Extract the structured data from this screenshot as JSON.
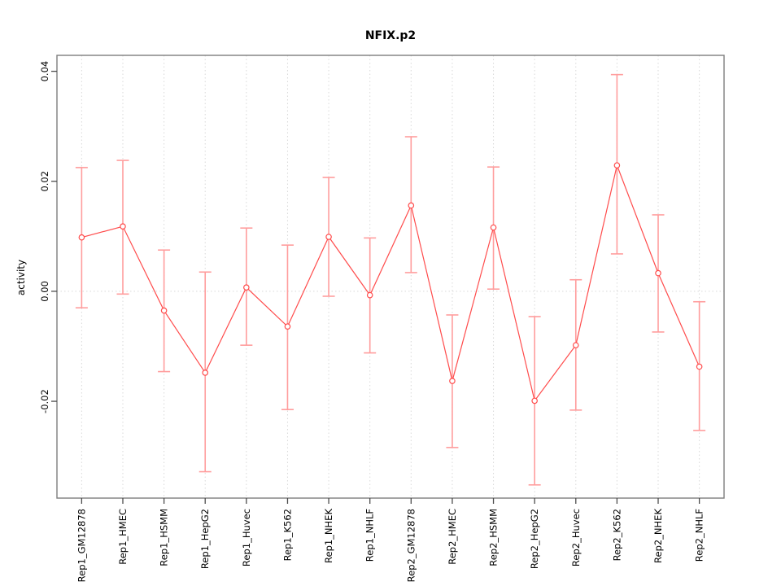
{
  "chart_data": {
    "type": "line",
    "title": "NFIX.p2",
    "xlabel": "",
    "ylabel": "activity",
    "categories": [
      "Rep1_GM12878",
      "Rep1_HMEC",
      "Rep1_HSMM",
      "Rep1_HepG2",
      "Rep1_Huvec",
      "Rep1_K562",
      "Rep1_NHEK",
      "Rep1_NHLF",
      "Rep2_GM12878",
      "Rep2_HMEC",
      "Rep2_HSMM",
      "Rep2_HepG2",
      "Rep2_Huvec",
      "Rep2_K562",
      "Rep2_NHEK",
      "Rep2_NHLF"
    ],
    "values": [
      0.0098,
      0.0118,
      -0.0035,
      -0.0148,
      0.0007,
      -0.0064,
      0.0099,
      -0.0007,
      0.0156,
      -0.0163,
      0.0116,
      -0.0199,
      -0.0098,
      0.0229,
      0.0033,
      -0.0137
    ],
    "error_lower": [
      -0.003,
      -0.0005,
      -0.0146,
      -0.0328,
      -0.0098,
      -0.0215,
      -0.0009,
      -0.0112,
      0.0034,
      -0.0284,
      0.0004,
      -0.0352,
      -0.0216,
      0.0068,
      -0.0074,
      -0.0253
    ],
    "error_upper": [
      0.0225,
      0.0238,
      0.0075,
      0.0035,
      0.0115,
      0.0084,
      0.0207,
      0.0097,
      0.0281,
      -0.0043,
      0.0226,
      -0.0046,
      0.0021,
      0.0394,
      0.0139,
      -0.0019
    ],
    "ylim": [
      -0.0376,
      0.0429
    ],
    "yticks": [
      -0.02,
      0.0,
      0.02,
      0.04
    ],
    "ytick_labels": [
      "-0.02",
      "0.00",
      "0.02",
      "0.04"
    ],
    "grid": "dotted vertical at each category, horizontal at zero",
    "legend_position": "none",
    "colors": {
      "series": "#ff4c4c",
      "error_bar": "#ff9d9d",
      "grid": "#d9d9d9",
      "box": "#7d7d7d",
      "tick": "#4d4d4d",
      "text": "#000000"
    }
  }
}
